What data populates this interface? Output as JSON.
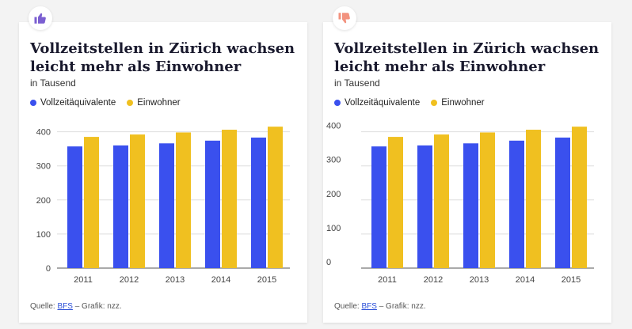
{
  "cards": [
    {
      "badge_icon": "thumbs-up-icon",
      "title": "Vollzeitstellen in Zürich wachsen leicht mehr als Einwohner",
      "subtitle": "in Tausend",
      "legend": [
        "Vollzeitäquivalente",
        "Einwohner"
      ],
      "source_prefix": "Quelle: ",
      "source_link": "BFS",
      "source_suffix": " – Grafik: nzz."
    },
    {
      "badge_icon": "thumbs-down-icon",
      "title": "Vollzeitstellen in Zürich wachsen leicht mehr als Einwohner",
      "subtitle": "in Tausend",
      "legend": [
        "Vollzeitäquivalente",
        "Einwohner"
      ],
      "source_prefix": "Quelle: ",
      "source_link": "BFS",
      "source_suffix": " – Grafik: nzz."
    }
  ],
  "colors": {
    "series1": "#3a50ee",
    "series2": "#f0c020",
    "thumb_up": "#7b5fd1",
    "thumb_down": "#f2927e",
    "link": "#2b4fd8"
  },
  "chart_data": [
    {
      "type": "bar",
      "title": "Vollzeitstellen in Zürich wachsen leicht mehr als Einwohner",
      "subtitle": "in Tausend",
      "categories": [
        "2011",
        "2012",
        "2013",
        "2014",
        "2015"
      ],
      "series": [
        {
          "name": "Vollzeitäquivalente",
          "values": [
            357,
            360,
            366,
            374,
            383
          ]
        },
        {
          "name": "Einwohner",
          "values": [
            385,
            392,
            398,
            406,
            415
          ]
        }
      ],
      "yticks": [
        0,
        100,
        200,
        300,
        400
      ],
      "ylim": [
        0,
        420
      ],
      "grid": true,
      "legend_position": "top-left",
      "tick_labels_above_grid": false
    },
    {
      "type": "bar",
      "title": "Vollzeitstellen in Zürich wachsen leicht mehr als Einwohner",
      "subtitle": "in Tausend",
      "categories": [
        "2011",
        "2012",
        "2013",
        "2014",
        "2015"
      ],
      "series": [
        {
          "name": "Vollzeitäquivalente",
          "values": [
            357,
            360,
            366,
            374,
            383
          ]
        },
        {
          "name": "Einwohner",
          "values": [
            385,
            392,
            398,
            406,
            415
          ]
        }
      ],
      "yticks": [
        0,
        100,
        200,
        300,
        400
      ],
      "ylim": [
        0,
        420
      ],
      "grid": true,
      "legend_position": "top-left",
      "tick_labels_above_grid": true
    }
  ]
}
